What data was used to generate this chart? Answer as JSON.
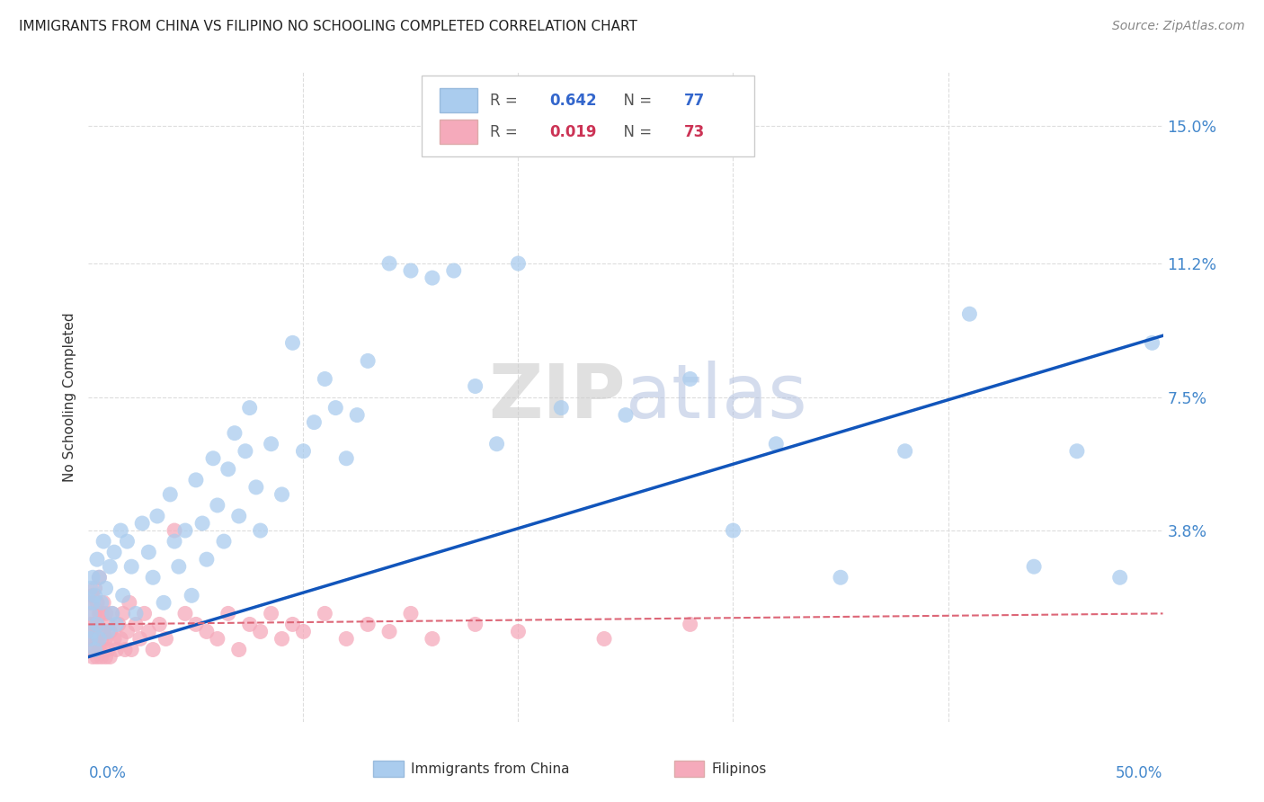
{
  "title": "IMMIGRANTS FROM CHINA VS FILIPINO NO SCHOOLING COMPLETED CORRELATION CHART",
  "source": "Source: ZipAtlas.com",
  "ylabel": "No Schooling Completed",
  "ytick_labels": [
    "15.0%",
    "11.2%",
    "7.5%",
    "3.8%"
  ],
  "ytick_values": [
    0.15,
    0.112,
    0.075,
    0.038
  ],
  "xmin": 0.0,
  "xmax": 0.5,
  "ymin": -0.015,
  "ymax": 0.165,
  "china_R": "0.642",
  "china_N": "77",
  "filipino_R": "0.019",
  "filipino_N": "73",
  "legend_label1": "Immigrants from China",
  "legend_label2": "Filipinos",
  "watermark": "ZIPatlas",
  "background_color": "#ffffff",
  "china_color": "#aaccee",
  "china_line_color": "#1155bb",
  "filipino_color": "#f5aabb",
  "filipino_line_color": "#dd6677",
  "china_line_start_y": 0.003,
  "china_line_end_y": 0.092,
  "filipino_line_start_y": 0.012,
  "filipino_line_end_y": 0.015,
  "china_points_x": [
    0.001,
    0.001,
    0.001,
    0.002,
    0.002,
    0.002,
    0.003,
    0.003,
    0.004,
    0.004,
    0.005,
    0.005,
    0.006,
    0.007,
    0.008,
    0.009,
    0.01,
    0.011,
    0.012,
    0.013,
    0.015,
    0.016,
    0.018,
    0.02,
    0.022,
    0.025,
    0.028,
    0.03,
    0.032,
    0.035,
    0.038,
    0.04,
    0.042,
    0.045,
    0.048,
    0.05,
    0.053,
    0.055,
    0.058,
    0.06,
    0.063,
    0.065,
    0.068,
    0.07,
    0.073,
    0.075,
    0.078,
    0.08,
    0.085,
    0.09,
    0.095,
    0.1,
    0.105,
    0.11,
    0.115,
    0.12,
    0.125,
    0.13,
    0.14,
    0.15,
    0.16,
    0.17,
    0.18,
    0.19,
    0.2,
    0.22,
    0.25,
    0.28,
    0.3,
    0.32,
    0.35,
    0.38,
    0.41,
    0.44,
    0.46,
    0.48,
    0.495
  ],
  "china_points_y": [
    0.008,
    0.015,
    0.022,
    0.01,
    0.018,
    0.025,
    0.005,
    0.02,
    0.012,
    0.03,
    0.008,
    0.025,
    0.018,
    0.035,
    0.022,
    0.01,
    0.028,
    0.015,
    0.032,
    0.012,
    0.038,
    0.02,
    0.035,
    0.028,
    0.015,
    0.04,
    0.032,
    0.025,
    0.042,
    0.018,
    0.048,
    0.035,
    0.028,
    0.038,
    0.02,
    0.052,
    0.04,
    0.03,
    0.058,
    0.045,
    0.035,
    0.055,
    0.065,
    0.042,
    0.06,
    0.072,
    0.05,
    0.038,
    0.062,
    0.048,
    0.09,
    0.06,
    0.068,
    0.08,
    0.072,
    0.058,
    0.07,
    0.085,
    0.112,
    0.11,
    0.108,
    0.11,
    0.078,
    0.062,
    0.112,
    0.072,
    0.07,
    0.08,
    0.038,
    0.062,
    0.025,
    0.06,
    0.098,
    0.028,
    0.06,
    0.025,
    0.09
  ],
  "filipino_points_x": [
    0.001,
    0.001,
    0.001,
    0.001,
    0.002,
    0.002,
    0.002,
    0.002,
    0.003,
    0.003,
    0.003,
    0.003,
    0.004,
    0.004,
    0.004,
    0.004,
    0.005,
    0.005,
    0.005,
    0.005,
    0.006,
    0.006,
    0.006,
    0.007,
    0.007,
    0.007,
    0.008,
    0.008,
    0.008,
    0.009,
    0.009,
    0.01,
    0.01,
    0.011,
    0.012,
    0.013,
    0.014,
    0.015,
    0.016,
    0.017,
    0.018,
    0.019,
    0.02,
    0.022,
    0.024,
    0.026,
    0.028,
    0.03,
    0.033,
    0.036,
    0.04,
    0.045,
    0.05,
    0.055,
    0.06,
    0.065,
    0.07,
    0.075,
    0.08,
    0.085,
    0.09,
    0.095,
    0.1,
    0.11,
    0.12,
    0.13,
    0.14,
    0.15,
    0.16,
    0.18,
    0.2,
    0.24,
    0.28
  ],
  "filipino_points_y": [
    0.005,
    0.008,
    0.012,
    0.018,
    0.003,
    0.008,
    0.012,
    0.02,
    0.005,
    0.01,
    0.015,
    0.022,
    0.003,
    0.008,
    0.012,
    0.018,
    0.005,
    0.01,
    0.015,
    0.025,
    0.003,
    0.008,
    0.015,
    0.005,
    0.01,
    0.018,
    0.003,
    0.008,
    0.015,
    0.005,
    0.012,
    0.003,
    0.01,
    0.015,
    0.008,
    0.005,
    0.012,
    0.008,
    0.015,
    0.005,
    0.01,
    0.018,
    0.005,
    0.012,
    0.008,
    0.015,
    0.01,
    0.005,
    0.012,
    0.008,
    0.038,
    0.015,
    0.012,
    0.01,
    0.008,
    0.015,
    0.005,
    0.012,
    0.01,
    0.015,
    0.008,
    0.012,
    0.01,
    0.015,
    0.008,
    0.012,
    0.01,
    0.015,
    0.008,
    0.012,
    0.01,
    0.008,
    0.012
  ]
}
